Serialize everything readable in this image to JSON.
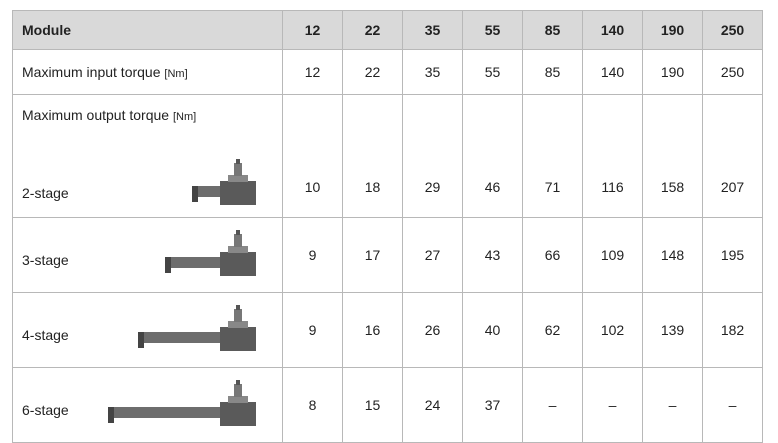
{
  "table": {
    "header": [
      "Module",
      12,
      22,
      35,
      55,
      85,
      140,
      190,
      250
    ],
    "input": {
      "label": "Maximum input torque",
      "unit": "[Nm]",
      "values": [
        12,
        22,
        35,
        55,
        85,
        140,
        190,
        250
      ]
    },
    "output": {
      "label": "Maximum output torque",
      "unit": "[Nm]",
      "stages": [
        {
          "label": "2-stage",
          "values": [
            10,
            18,
            29,
            46,
            71,
            116,
            158,
            207
          ]
        },
        {
          "label": "3-stage",
          "values": [
            9,
            17,
            27,
            43,
            66,
            109,
            148,
            195
          ]
        },
        {
          "label": "4-stage",
          "values": [
            9,
            16,
            26,
            40,
            62,
            102,
            139,
            182
          ]
        },
        {
          "label": "6-stage",
          "values": [
            8,
            15,
            24,
            37,
            "–",
            "–",
            "–",
            "–"
          ]
        }
      ]
    }
  }
}
